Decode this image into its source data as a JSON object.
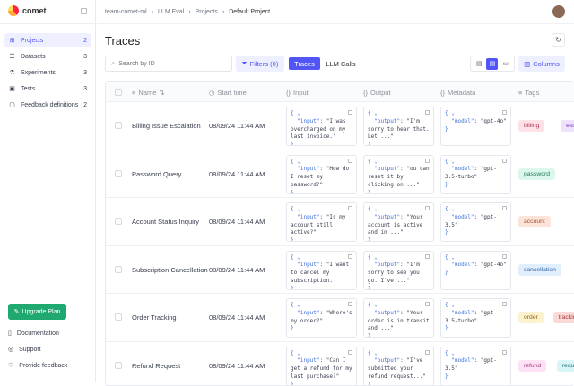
{
  "app": {
    "name": "comet"
  },
  "breadcrumb": [
    "team-comet-ml",
    "LLM Eval",
    "Projects",
    "Default Project"
  ],
  "sidebar": {
    "items": [
      {
        "label": "Projects",
        "count": "2",
        "icon": "grid-icon"
      },
      {
        "label": "Datasets",
        "count": "3",
        "icon": "database-icon"
      },
      {
        "label": "Experiments",
        "count": "3",
        "icon": "flask-icon"
      },
      {
        "label": "Tests",
        "count": "3",
        "icon": "test-icon"
      },
      {
        "label": "Feedback definitions",
        "count": "2",
        "icon": "message-icon"
      }
    ],
    "upgrade": "Upgrade Plan",
    "footer": [
      {
        "label": "Documentation",
        "icon": "book-icon"
      },
      {
        "label": "Support",
        "icon": "support-icon"
      },
      {
        "label": "Provide feedback",
        "icon": "heart-icon"
      }
    ]
  },
  "page": {
    "title": "Traces"
  },
  "toolbar": {
    "search_placeholder": "Search by ID",
    "filters": "Filters (0)",
    "tabs": [
      "Traces",
      "LLM Calls"
    ],
    "columns": "Columns"
  },
  "table": {
    "headers": [
      "Name",
      "Start time",
      "Input",
      "Output",
      "Metadata",
      "Tags"
    ],
    "rows": [
      {
        "name": "Billing Issue Escalation",
        "time": "08/09/24 11:44 AM",
        "input": "\"I was overcharged on my last invoice.\"",
        "output": "\"I'm sorry to hear that. Let ...\"",
        "model": "\"gpt-4o\"",
        "tags": [
          "billing",
          "escalation"
        ]
      },
      {
        "name": "Password Query",
        "time": "08/09/24 11:44 AM",
        "input": "\"How do I reset my password?\"",
        "output": "\"ou can reset it by clicking on ...\"",
        "model": "\"gpt-3.5-turbo\"",
        "tags": [
          "password"
        ]
      },
      {
        "name": "Account Status Inquiry",
        "time": "08/09/24 11:44 AM",
        "input": "\"Is my account still active?\"",
        "output": "\"Your account is active and in ...\"",
        "model": "\"gpt-3.5\"",
        "tags": [
          "account"
        ]
      },
      {
        "name": "Subscription Cancellation",
        "time": "08/09/24 11:44 AM",
        "input": "\"I want to cancel my subscription.",
        "output": "\"I'm sorry to see you go. I've ...\"",
        "model": "\"gpt-4o\"",
        "tags": [
          "cancellation"
        ]
      },
      {
        "name": "Order Tracking",
        "time": "08/09/24 11:44 AM",
        "input": "\"Where's my order?\"",
        "output": "\"Your order is in transit and ...\"",
        "model": "\"gpt-3.5-turbo\"",
        "tags": [
          "order",
          "tracking"
        ]
      },
      {
        "name": "Refund Request",
        "time": "08/09/24 11:44 AM",
        "input": "\"Can I get a refund for my last purchase?\"",
        "output": "\"I've submitted your refund request...\"",
        "model": "\"gpt-3.5\"",
        "tags": [
          "refund",
          "request"
        ]
      }
    ]
  },
  "tag_colors": {
    "billing": [
      "#fde2e7",
      "#b33a55"
    ],
    "escalation": [
      "#efe2fd",
      "#7a3fb3"
    ],
    "password": [
      "#dcf7ec",
      "#1f7a55"
    ],
    "account": [
      "#fde4da",
      "#a8522f"
    ],
    "cancellation": [
      "#e1eefe",
      "#2c5d9c"
    ],
    "order": [
      "#fdf2cf",
      "#8a6a12"
    ],
    "tracking": [
      "#fcd9d9",
      "#a33a3a"
    ],
    "refund": [
      "#fde2f5",
      "#a33a85"
    ],
    "request": [
      "#d9f5f7",
      "#1f7580"
    ]
  },
  "colors": {
    "accent": "#5155f5",
    "upgrade": "#1fa870"
  }
}
